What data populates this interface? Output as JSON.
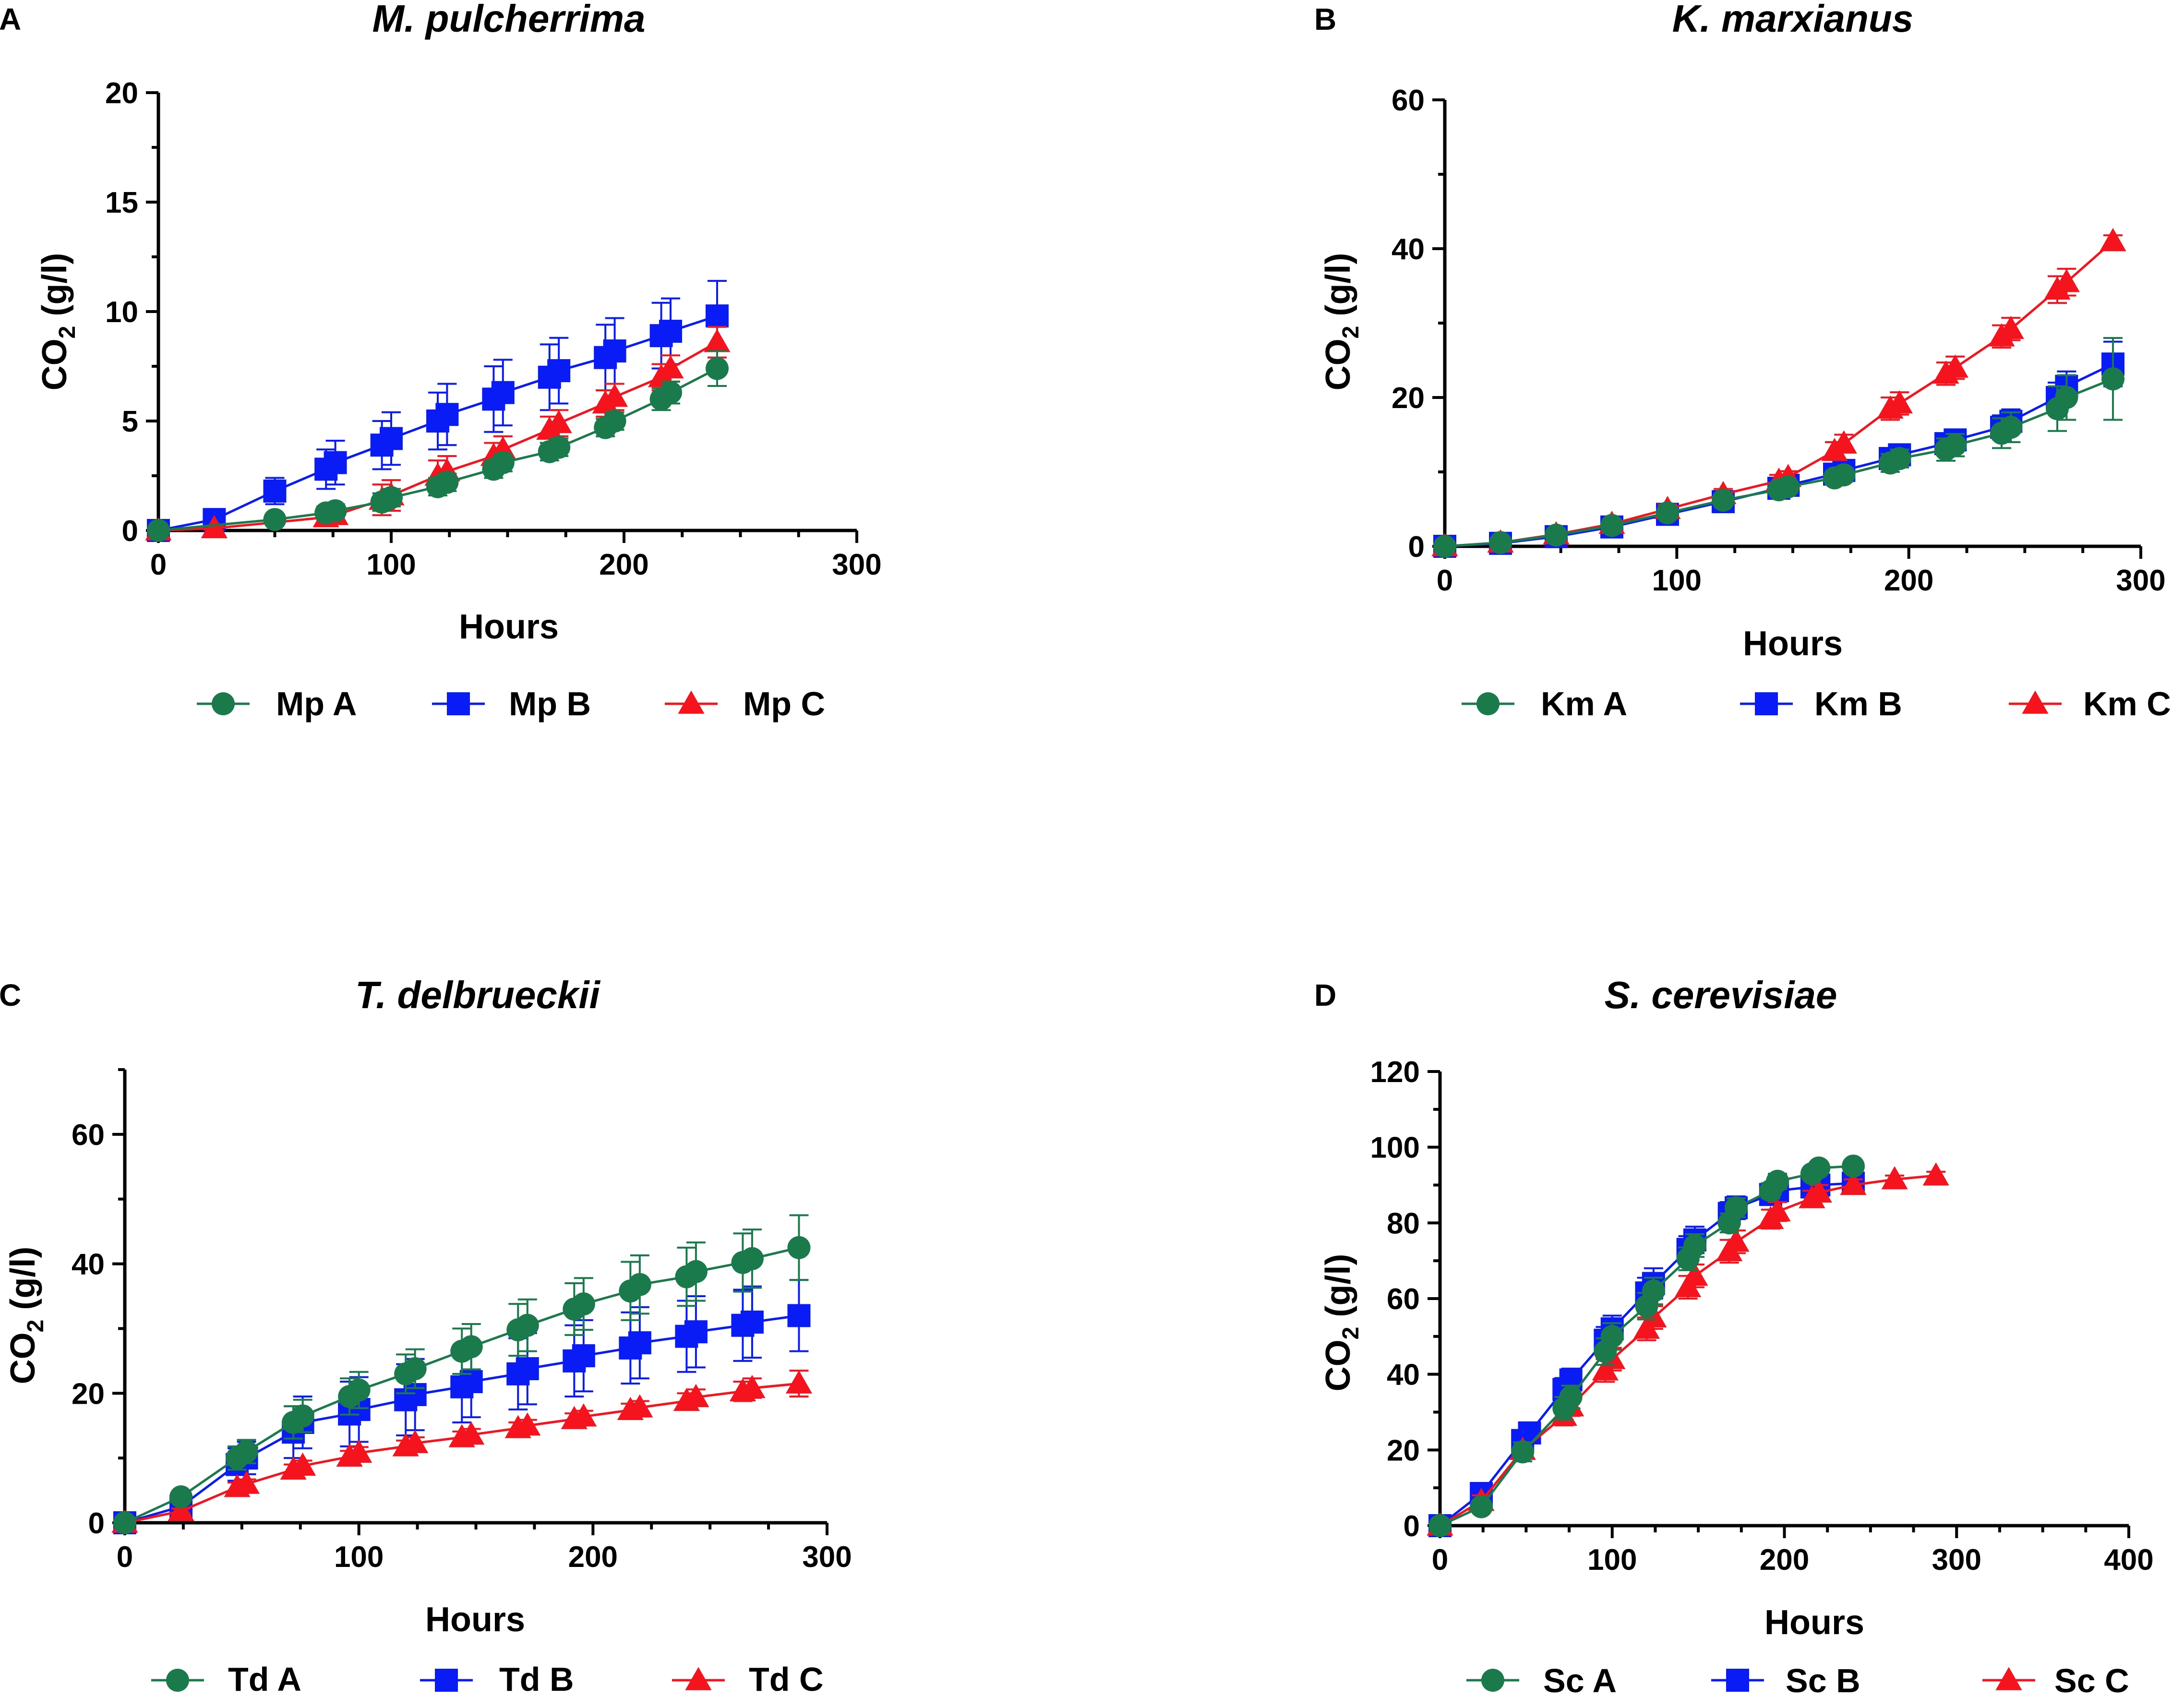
{
  "colors": {
    "A": "#1a7a4c",
    "B": "#0a1cf5",
    "C": "#f5141e"
  },
  "chart_data": [
    {
      "panel": "A",
      "type": "line",
      "title": "M. pulcherrima",
      "xlabel": "Hours",
      "ylabel_main": "CO",
      "ylabel_sub": "2",
      "ylabel_tail": " (g/l)",
      "xlim": [
        0,
        300
      ],
      "xticks": [
        0,
        100,
        200,
        300
      ],
      "xminor": 25,
      "ylim": [
        0,
        20
      ],
      "yticks": [
        0,
        5,
        10,
        15,
        20
      ],
      "yminor": 2.5,
      "grid": false,
      "legend_position": "bottom",
      "series": [
        {
          "name": "Mp A",
          "marker": "circle",
          "color_key": "A",
          "x": [
            0,
            50,
            72,
            76,
            96,
            100,
            120,
            124,
            144,
            148,
            168,
            172,
            192,
            196,
            216,
            220,
            240
          ],
          "y": [
            0,
            0.5,
            0.8,
            0.9,
            1.3,
            1.5,
            2.0,
            2.2,
            2.8,
            3.1,
            3.6,
            3.8,
            4.7,
            5.0,
            6.0,
            6.3,
            7.4
          ],
          "err": [
            0,
            0.2,
            0.3,
            0.3,
            0.4,
            0.4,
            0.4,
            0.4,
            0.4,
            0.4,
            0.4,
            0.4,
            0.4,
            0.4,
            0.5,
            0.5,
            0.8
          ]
        },
        {
          "name": "Mp B",
          "marker": "square",
          "color_key": "B",
          "x": [
            0,
            24,
            50,
            72,
            76,
            96,
            100,
            120,
            124,
            144,
            148,
            168,
            172,
            192,
            196,
            216,
            220,
            240
          ],
          "y": [
            0,
            0.5,
            1.8,
            2.8,
            3.1,
            3.9,
            4.2,
            5.0,
            5.3,
            6.0,
            6.3,
            7.0,
            7.3,
            7.9,
            8.2,
            8.9,
            9.1,
            9.8
          ],
          "err": [
            0,
            0.3,
            0.6,
            0.9,
            1.0,
            1.1,
            1.2,
            1.3,
            1.4,
            1.5,
            1.5,
            1.5,
            1.5,
            1.5,
            1.5,
            1.5,
            1.5,
            1.6
          ]
        },
        {
          "name": "Mp C",
          "marker": "triangle",
          "color_key": "C",
          "x": [
            0,
            24,
            72,
            76,
            96,
            100,
            120,
            124,
            144,
            148,
            168,
            172,
            192,
            196,
            216,
            220,
            240
          ],
          "y": [
            0,
            0.1,
            0.6,
            0.7,
            1.4,
            1.6,
            2.5,
            2.7,
            3.4,
            3.7,
            4.6,
            4.9,
            5.8,
            6.1,
            7.0,
            7.4,
            8.6
          ],
          "err": [
            0,
            0.1,
            0.4,
            0.4,
            0.7,
            0.7,
            0.7,
            0.7,
            0.6,
            0.6,
            0.6,
            0.6,
            0.6,
            0.6,
            0.6,
            0.6,
            0.7
          ]
        }
      ]
    },
    {
      "panel": "B",
      "type": "line",
      "title": "K. marxianus",
      "xlabel": "Hours",
      "ylabel_main": "CO",
      "ylabel_sub": "2",
      "ylabel_tail": " (g/l)",
      "xlim": [
        0,
        300
      ],
      "xticks": [
        0,
        100,
        200,
        300
      ],
      "xminor": 25,
      "ylim": [
        0,
        60
      ],
      "yticks": [
        0,
        20,
        40,
        60
      ],
      "yminor": 10,
      "grid": false,
      "legend_position": "bottom",
      "series": [
        {
          "name": "Km A",
          "marker": "circle",
          "color_key": "A",
          "x": [
            0,
            24,
            48,
            72,
            96,
            120,
            144,
            148,
            168,
            172,
            192,
            196,
            216,
            220,
            240,
            244,
            264,
            268,
            288
          ],
          "y": [
            0,
            0.5,
            1.5,
            2.8,
            4.5,
            6.2,
            7.6,
            8.0,
            9.2,
            9.6,
            11.2,
            11.8,
            13.0,
            13.6,
            15.2,
            16.0,
            18.5,
            20.0,
            22.5
          ],
          "err": [
            0,
            0.3,
            0.4,
            0.5,
            0.6,
            0.7,
            0.8,
            0.8,
            0.9,
            0.9,
            1.2,
            1.2,
            1.5,
            1.5,
            2.0,
            2.0,
            3.0,
            3.0,
            5.5
          ]
        },
        {
          "name": "Km B",
          "marker": "square",
          "color_key": "B",
          "x": [
            0,
            24,
            48,
            72,
            96,
            120,
            144,
            148,
            168,
            172,
            192,
            196,
            216,
            220,
            240,
            244,
            264,
            268,
            288
          ],
          "y": [
            0,
            0.4,
            1.3,
            2.6,
            4.3,
            6.0,
            7.8,
            8.2,
            9.7,
            10.2,
            11.8,
            12.3,
            13.8,
            14.3,
            16.0,
            16.8,
            20.0,
            21.5,
            24.5
          ],
          "err": [
            0,
            0.3,
            0.4,
            0.5,
            0.6,
            0.7,
            0.7,
            0.7,
            0.8,
            0.8,
            1.0,
            1.0,
            1.2,
            1.2,
            1.6,
            1.6,
            2.0,
            2.0,
            3.0
          ]
        },
        {
          "name": "Km C",
          "marker": "triangle",
          "color_key": "C",
          "x": [
            0,
            24,
            48,
            72,
            96,
            120,
            144,
            148,
            168,
            172,
            192,
            196,
            216,
            220,
            240,
            244,
            264,
            268,
            288
          ],
          "y": [
            0,
            0.5,
            1.6,
            3.0,
            5.0,
            7.0,
            8.8,
            9.3,
            12.8,
            13.8,
            18.5,
            19.2,
            23.2,
            24.0,
            28.2,
            29.2,
            34.5,
            35.5,
            41.0
          ],
          "err": [
            0,
            0.3,
            0.4,
            0.5,
            0.6,
            0.7,
            0.8,
            0.8,
            1.2,
            1.2,
            1.5,
            1.5,
            1.5,
            1.5,
            1.5,
            1.5,
            1.8,
            1.8,
            0.8
          ]
        }
      ]
    },
    {
      "panel": "C",
      "type": "line",
      "title": "T. delbrueckii",
      "xlabel": "Hours",
      "ylabel_main": "CO",
      "ylabel_sub": "2",
      "ylabel_tail": " (g/l)",
      "xlim": [
        0,
        300
      ],
      "xticks": [
        0,
        100,
        200,
        300
      ],
      "xminor": 25,
      "ylim": [
        0,
        70
      ],
      "yticks": [
        0,
        20,
        40,
        60
      ],
      "yminor": 10,
      "grid": false,
      "legend_position": "bottom",
      "series": [
        {
          "name": "Td A",
          "marker": "circle",
          "color_key": "A",
          "x": [
            0,
            24,
            48,
            52,
            72,
            76,
            96,
            100,
            120,
            124,
            144,
            148,
            168,
            172,
            192,
            196,
            216,
            220,
            240,
            244,
            264,
            268,
            288
          ],
          "y": [
            0,
            4.0,
            10.0,
            11.0,
            15.5,
            16.5,
            19.5,
            20.5,
            23.0,
            23.8,
            26.5,
            27.2,
            29.8,
            30.5,
            33.0,
            33.8,
            35.8,
            36.8,
            38.0,
            38.8,
            40.2,
            40.8,
            42.5
          ],
          "err": [
            0,
            0.8,
            1.8,
            1.8,
            2.5,
            2.5,
            2.8,
            2.8,
            3.0,
            3.0,
            3.5,
            3.5,
            4.0,
            4.0,
            4.0,
            4.0,
            4.5,
            4.5,
            4.5,
            4.5,
            4.5,
            4.5,
            5.0
          ]
        },
        {
          "name": "Td B",
          "marker": "square",
          "color_key": "B",
          "x": [
            0,
            24,
            48,
            52,
            72,
            76,
            96,
            100,
            120,
            124,
            144,
            148,
            168,
            172,
            192,
            196,
            216,
            220,
            240,
            244,
            264,
            268,
            288
          ],
          "y": [
            0,
            2.5,
            9.0,
            10.0,
            14.0,
            15.5,
            16.8,
            17.5,
            19.0,
            19.8,
            21.0,
            21.8,
            23.0,
            23.8,
            25.0,
            25.8,
            27.0,
            27.8,
            28.8,
            29.5,
            30.5,
            31.0,
            32.0
          ],
          "err": [
            0,
            1.0,
            2.5,
            2.5,
            4.0,
            4.0,
            5.0,
            5.0,
            5.5,
            5.5,
            5.5,
            5.5,
            5.5,
            5.5,
            5.5,
            5.5,
            5.5,
            5.5,
            5.5,
            5.5,
            5.5,
            5.5,
            5.5
          ]
        },
        {
          "name": "Td C",
          "marker": "triangle",
          "color_key": "C",
          "x": [
            0,
            24,
            48,
            52,
            72,
            76,
            96,
            100,
            120,
            124,
            144,
            148,
            168,
            172,
            192,
            196,
            216,
            220,
            240,
            244,
            264,
            268,
            288
          ],
          "y": [
            0,
            1.8,
            5.5,
            6.0,
            8.2,
            8.8,
            10.2,
            10.8,
            11.8,
            12.3,
            13.2,
            13.6,
            14.6,
            15.0,
            16.0,
            16.4,
            17.4,
            17.8,
            18.8,
            19.4,
            20.3,
            20.8,
            21.5
          ],
          "err": [
            0,
            0.4,
            0.7,
            0.7,
            0.8,
            0.8,
            0.9,
            0.9,
            0.9,
            0.9,
            0.9,
            0.9,
            0.9,
            0.9,
            0.9,
            0.9,
            1.0,
            1.0,
            1.2,
            1.2,
            1.5,
            1.5,
            2.0
          ]
        }
      ]
    },
    {
      "panel": "D",
      "type": "line",
      "title": "S. cerevisiae",
      "xlabel": "Hours",
      "ylabel_main": "CO",
      "ylabel_sub": "2",
      "ylabel_tail": " (g/l)",
      "xlim": [
        0,
        400
      ],
      "xticks": [
        0,
        100,
        200,
        300,
        400
      ],
      "xminor": 25,
      "ylim": [
        0,
        120
      ],
      "yticks": [
        0,
        20,
        40,
        60,
        80,
        100,
        120
      ],
      "yminor": 10,
      "grid": false,
      "legend_position": "bottom",
      "series": [
        {
          "name": "Sc A",
          "marker": "circle",
          "color_key": "A",
          "x": [
            0,
            24,
            48,
            72,
            76,
            96,
            100,
            120,
            124,
            144,
            148,
            168,
            172,
            192,
            196,
            216,
            220,
            240
          ],
          "y": [
            0,
            5.0,
            19.5,
            31.0,
            34.0,
            46.0,
            50.0,
            58.0,
            62.0,
            70.5,
            74.0,
            80.0,
            84.0,
            88.5,
            91.0,
            93.0,
            94.5,
            95.0
          ],
          "err": [
            0,
            1.5,
            2.5,
            3.0,
            3.0,
            3.5,
            3.5,
            3.5,
            3.5,
            3.0,
            3.0,
            2.5,
            2.5,
            2.0,
            2.0,
            1.5,
            1.5,
            1.0
          ]
        },
        {
          "name": "Sc B",
          "marker": "square",
          "color_key": "B",
          "x": [
            0,
            24,
            48,
            52,
            72,
            76,
            96,
            100,
            120,
            124,
            144,
            148,
            168,
            172,
            192,
            196,
            216,
            220,
            240
          ],
          "y": [
            0,
            8.5,
            22.5,
            24.5,
            36.0,
            38.5,
            49.0,
            52.0,
            61.5,
            64.0,
            73.0,
            75.5,
            82.5,
            84.0,
            87.5,
            88.5,
            89.5,
            90.0,
            90.5
          ],
          "err": [
            0,
            1.5,
            2.5,
            2.5,
            3.0,
            3.0,
            3.5,
            3.5,
            4.0,
            4.0,
            3.5,
            3.5,
            3.0,
            3.0,
            2.5,
            2.5,
            2.0,
            2.0,
            2.0
          ]
        },
        {
          "name": "Sc C",
          "marker": "triangle",
          "color_key": "C",
          "x": [
            0,
            24,
            48,
            72,
            76,
            96,
            100,
            120,
            124,
            144,
            148,
            168,
            172,
            192,
            196,
            216,
            220,
            240,
            264,
            288
          ],
          "y": [
            0,
            6.5,
            20.0,
            29.0,
            31.5,
            41.0,
            44.0,
            52.0,
            55.0,
            63.0,
            66.0,
            72.5,
            75.0,
            81.0,
            83.0,
            86.5,
            88.0,
            90.0,
            91.5,
            92.5
          ],
          "err": [
            0,
            1.5,
            2.0,
            2.5,
            2.5,
            3.0,
            3.0,
            3.0,
            3.0,
            3.0,
            3.0,
            3.0,
            3.0,
            2.5,
            2.5,
            2.0,
            2.0,
            1.5,
            1.0,
            1.0
          ]
        }
      ]
    }
  ]
}
